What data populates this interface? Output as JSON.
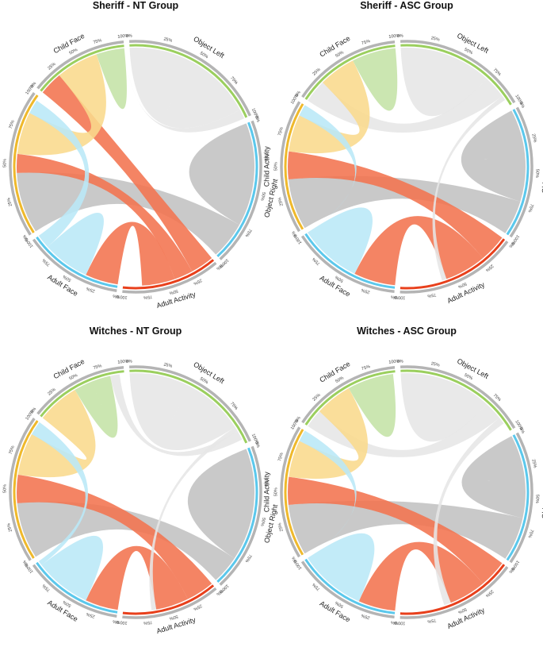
{
  "colors": {
    "Object Left": "#e6e6e6",
    "Object Right": "#c2c2c2",
    "Adult Activity": "#f2734f",
    "Adult Face": "#b9e8f7",
    "Child Activity": "#f9d98c",
    "Child Face": "#c4e2a6"
  },
  "ring_colors": {
    "Object Left": "#9bcf5e",
    "Object Right": "#5bc8ec",
    "Adult Activity": "#e8401c",
    "Adult Face": "#5bc8ec",
    "Child Activity": "#efb92c",
    "Child Face": "#9bcf5e",
    "outer": "#b4b4b4"
  },
  "tick_labels": [
    "0%",
    "25%",
    "50%",
    "75%",
    "100%"
  ],
  "segments": [
    "Object Left",
    "Object Right",
    "Adult Activity",
    "Adult Face",
    "Child Activity",
    "Child Face"
  ],
  "panels": [
    {
      "title": "Sheriff - NT Group",
      "sizes": [
        60,
        60,
        40,
        40,
        60,
        40
      ],
      "ribbons": [
        {
          "from": "Object Left",
          "to": "Object Left",
          "value": 28
        },
        {
          "from": "Object Right",
          "to": "Object Right",
          "value": 22
        },
        {
          "from": "Object Right",
          "to": "Child Activity",
          "value": 26
        },
        {
          "from": "Adult Activity",
          "to": "Child Face",
          "value": 10
        },
        {
          "from": "Adult Activity",
          "to": "Child Activity",
          "value": 8
        },
        {
          "from": "Adult Activity",
          "to": "Adult Face",
          "value": 14
        },
        {
          "from": "Adult Face",
          "to": "Adult Face",
          "value": 10
        },
        {
          "from": "Child Activity",
          "to": "Child Face",
          "value": 18
        },
        {
          "from": "Child Face",
          "to": "Child Face",
          "value": 8
        },
        {
          "from": "Object Left",
          "to": "Child Face",
          "value": 4
        },
        {
          "from": "Object Left",
          "to": "Object Right",
          "value": 3
        },
        {
          "from": "Adult Face",
          "to": "Child Activity",
          "value": 6
        }
      ]
    },
    {
      "title": "Sheriff - ASC Group",
      "sizes": [
        55,
        55,
        50,
        45,
        55,
        45
      ],
      "ribbons": [
        {
          "from": "Object Left",
          "to": "Object Left",
          "value": 20
        },
        {
          "from": "Object Left",
          "to": "Child Face",
          "value": 10
        },
        {
          "from": "Object Right",
          "to": "Object Right",
          "value": 20
        },
        {
          "from": "Object Right",
          "to": "Child Activity",
          "value": 22
        },
        {
          "from": "Adult Activity",
          "to": "Child Activity",
          "value": 12
        },
        {
          "from": "Adult Activity",
          "to": "Adult Face",
          "value": 18
        },
        {
          "from": "Adult Face",
          "to": "Adult Face",
          "value": 14
        },
        {
          "from": "Child Activity",
          "to": "Child Face",
          "value": 16
        },
        {
          "from": "Child Face",
          "to": "Child Face",
          "value": 10
        },
        {
          "from": "Object Left",
          "to": "Adult Activity",
          "value": 2
        },
        {
          "from": "Adult Face",
          "to": "Child Activity",
          "value": 6
        }
      ]
    },
    {
      "title": "Witches - NT Group",
      "sizes": [
        60,
        60,
        40,
        40,
        60,
        40
      ],
      "ribbons": [
        {
          "from": "Object Left",
          "to": "Object Left",
          "value": 26
        },
        {
          "from": "Object Right",
          "to": "Object Right",
          "value": 24
        },
        {
          "from": "Object Right",
          "to": "Child Activity",
          "value": 24
        },
        {
          "from": "Adult Activity",
          "to": "Child Activity",
          "value": 12
        },
        {
          "from": "Adult Activity",
          "to": "Adult Face",
          "value": 14
        },
        {
          "from": "Adult Face",
          "to": "Adult Face",
          "value": 12
        },
        {
          "from": "Child Activity",
          "to": "Child Face",
          "value": 18
        },
        {
          "from": "Child Face",
          "to": "Child Face",
          "value": 8
        },
        {
          "from": "Object Left",
          "to": "Adult Activity",
          "value": 2
        },
        {
          "from": "Adult Face",
          "to": "Child Activity",
          "value": 6
        },
        {
          "from": "Object Left",
          "to": "Child Face",
          "value": 4
        }
      ]
    },
    {
      "title": "Witches - ASC Group",
      "sizes": [
        55,
        55,
        50,
        45,
        55,
        45
      ],
      "ribbons": [
        {
          "from": "Object Left",
          "to": "Object Left",
          "value": 20
        },
        {
          "from": "Object Left",
          "to": "Child Face",
          "value": 8
        },
        {
          "from": "Object Right",
          "to": "Object Right",
          "value": 18
        },
        {
          "from": "Object Right",
          "to": "Child Activity",
          "value": 22
        },
        {
          "from": "Adult Activity",
          "to": "Child Activity",
          "value": 12
        },
        {
          "from": "Adult Activity",
          "to": "Adult Face",
          "value": 16
        },
        {
          "from": "Adult Face",
          "to": "Adult Face",
          "value": 18
        },
        {
          "from": "Child Activity",
          "to": "Child Face",
          "value": 16
        },
        {
          "from": "Child Face",
          "to": "Child Face",
          "value": 10
        },
        {
          "from": "Object Left",
          "to": "Adult Activity",
          "value": 3
        },
        {
          "from": "Adult Face",
          "to": "Child Activity",
          "value": 6
        }
      ]
    }
  ]
}
